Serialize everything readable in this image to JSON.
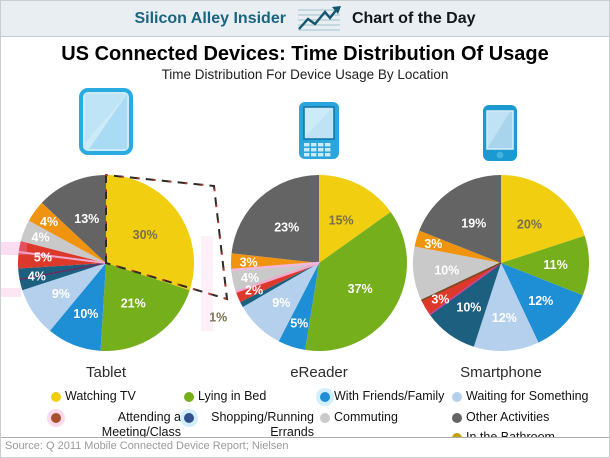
{
  "header": {
    "brand": "Silicon Alley Insider",
    "title": "Chart of the Day"
  },
  "title": "US Connected Devices: Time Distribution Of Usage",
  "subtitle": "Time Distribution For Device Usage By Location",
  "source": "Source: Q 2011 Mobile Connected Device Report; Nielsen",
  "chart_data": {
    "type": "pie",
    "title": "US Connected Devices: Time Distribution Of Usage",
    "subtitle": "Time Distribution For Device Usage By Location",
    "categories": [
      "Watching TV",
      "Lying in Bed",
      "With Friends/Family",
      "Waiting for Something",
      "Shopping/Running Errands",
      "Attending a Meeting/Class",
      "Commuting",
      "In the Bathroom",
      "Other Activities"
    ],
    "colors": [
      "#F2CE11",
      "#76AF1C",
      "#1E8FD5",
      "#B5D0EC",
      "#1C5F7E",
      "#DD392B",
      "#C9C9C9",
      "#F0940F",
      "#646464"
    ],
    "label_dark_color": "#77704C",
    "pies": [
      {
        "name": "Tablet",
        "values": [
          30,
          21,
          10,
          9,
          4,
          5,
          4,
          4,
          13
        ],
        "dark_label_indices": [
          0
        ],
        "highlighted_slice": 0
      },
      {
        "name": "eReader",
        "values": [
          15,
          37,
          5,
          9,
          1,
          2,
          4,
          3,
          23
        ],
        "dark_label_indices": [
          0,
          4
        ]
      },
      {
        "name": "Smartphone",
        "values": [
          20,
          11,
          12,
          12,
          10,
          3,
          10,
          3,
          19
        ],
        "dark_label_indices": [
          0
        ]
      }
    ]
  },
  "legend": {
    "columns": [
      {
        "items": [
          {
            "label": "Watching TV",
            "cat": 0
          },
          {
            "label": "Attending a Meeting/Class",
            "cat": 5
          }
        ]
      },
      {
        "items": [
          {
            "label": "Lying in Bed",
            "cat": 1
          },
          {
            "label": "Shopping/Running Errands",
            "cat": 4
          }
        ]
      },
      {
        "items": [
          {
            "label": "With Friends/Family",
            "cat": 2
          },
          {
            "label": "Commuting",
            "cat": 6
          }
        ]
      },
      {
        "items": [
          {
            "label": "Waiting for Something",
            "cat": 3
          },
          {
            "label": "Other Activities",
            "cat": 8
          },
          {
            "label": "In the Bathroom",
            "cat": 7
          }
        ]
      }
    ],
    "legend_color_overrides": {
      "4": "#32508C",
      "5": "#A8502D",
      "7": "#C2A30B"
    }
  }
}
